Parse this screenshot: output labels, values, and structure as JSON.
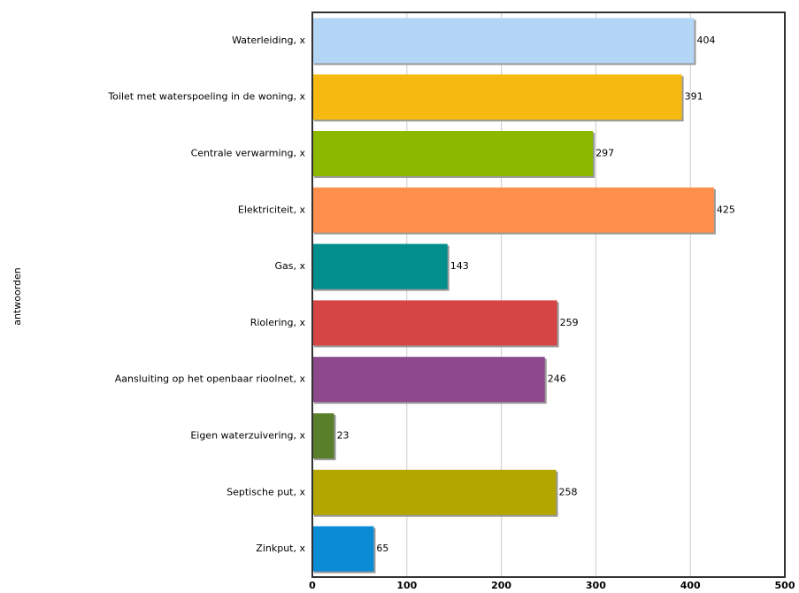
{
  "chart_data": {
    "type": "bar",
    "orientation": "horizontal",
    "y_label": "antwoorden",
    "categories": [
      "Waterleiding, x",
      "Toilet met waterspoeling in de woning, x",
      "Centrale verwarming, x",
      "Elektriciteit, x",
      "Gas, x",
      "Riolering, x",
      "Aansluiting op het openbaar rioolnet, x",
      "Eigen waterzuivering, x",
      "Septische put, x",
      "Zinkput, x"
    ],
    "values": [
      404,
      391,
      297,
      425,
      143,
      259,
      246,
      23,
      258,
      65
    ],
    "colors": [
      "#b3d6f7",
      "#f5b90f",
      "#8cb800",
      "#ff8f4d",
      "#008f8c",
      "#d64545",
      "#8c4a8c",
      "#5a7f2a",
      "#b3a600",
      "#0a8bd6"
    ],
    "xlim": [
      0,
      500
    ],
    "xticks": [
      0,
      100,
      200,
      300,
      400,
      500
    ],
    "grid": true
  }
}
